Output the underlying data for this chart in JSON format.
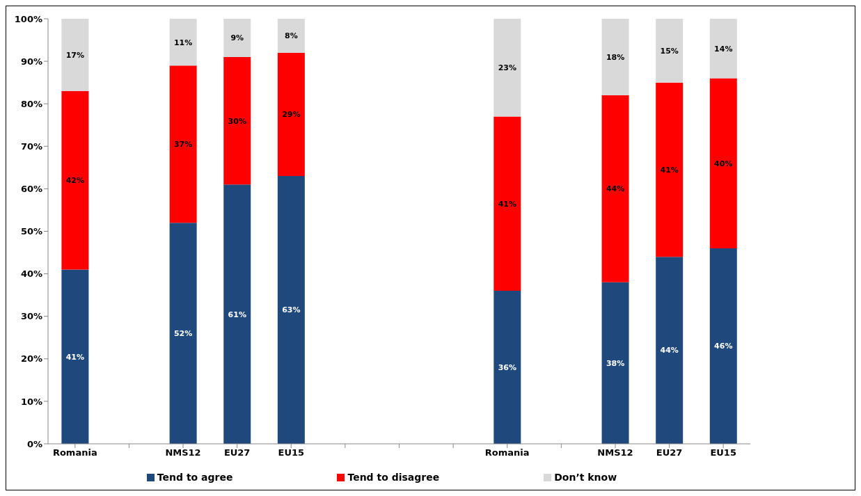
{
  "chart_data": {
    "type": "bar",
    "stacked": true,
    "categories": [
      "Romania",
      null,
      "NMS12",
      "EU27",
      "EU15",
      null,
      null,
      null,
      "Romania",
      null,
      "NMS12",
      "EU27",
      "EU15"
    ],
    "series": [
      {
        "name": "Tend to agree",
        "color": "#1f497d",
        "values": [
          41,
          null,
          52,
          61,
          63,
          null,
          null,
          null,
          36,
          null,
          38,
          44,
          46
        ],
        "value_labels": [
          "41%",
          null,
          "52%",
          "61%",
          "63%",
          null,
          null,
          null,
          "36%",
          null,
          "38%",
          "44%",
          "46%"
        ]
      },
      {
        "name": "Tend to disagree",
        "color": "#ff0000",
        "values": [
          42,
          null,
          37,
          30,
          29,
          null,
          null,
          null,
          41,
          null,
          44,
          41,
          40
        ],
        "value_labels": [
          "42%",
          null,
          "37%",
          "30%",
          "29%",
          null,
          null,
          null,
          "41%",
          null,
          "44%",
          "41%",
          "40%"
        ]
      },
      {
        "name": "Don’t know",
        "color": "#d9d9d9",
        "values": [
          17,
          null,
          11,
          9,
          8,
          null,
          null,
          null,
          23,
          null,
          18,
          15,
          14
        ],
        "value_labels": [
          "17%",
          null,
          "11%",
          "9%",
          "8%",
          null,
          null,
          null,
          "23%",
          null,
          "18%",
          "15%",
          "14%"
        ]
      }
    ],
    "ylim": [
      0,
      100
    ],
    "yticks": [
      {
        "value": 0,
        "label": "0%"
      },
      {
        "value": 10,
        "label": "10%"
      },
      {
        "value": 20,
        "label": "20%"
      },
      {
        "value": 30,
        "label": "30%"
      },
      {
        "value": 40,
        "label": "40%"
      },
      {
        "value": 50,
        "label": "50%"
      },
      {
        "value": 60,
        "label": "60%"
      },
      {
        "value": 70,
        "label": "70%"
      },
      {
        "value": 80,
        "label": "80%"
      },
      {
        "value": 90,
        "label": "90%"
      },
      {
        "value": 100,
        "label": "100%"
      }
    ],
    "legend": "bottom"
  }
}
